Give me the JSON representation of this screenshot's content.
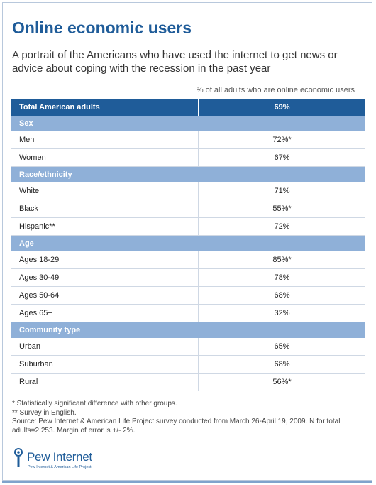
{
  "title": "Online economic users",
  "subtitle": "A portrait of the Americans who have used the internet to get news or advice about coping with the recession in the past year",
  "chart_data": {
    "type": "table",
    "column_header": "% of all adults who are online economic users",
    "total": {
      "label": "Total American adults",
      "value": "69%"
    },
    "groups": [
      {
        "name": "Sex",
        "rows": [
          {
            "label": "Men",
            "value": "72%*"
          },
          {
            "label": "Women",
            "value": "67%"
          }
        ]
      },
      {
        "name": "Race/ethnicity",
        "rows": [
          {
            "label": "White",
            "value": "71%"
          },
          {
            "label": "Black",
            "value": "55%*"
          },
          {
            "label": "Hispanic**",
            "value": "72%"
          }
        ]
      },
      {
        "name": "Age",
        "rows": [
          {
            "label": "Ages 18-29",
            "value": "85%*"
          },
          {
            "label": "Ages 30-49",
            "value": "78%"
          },
          {
            "label": "Ages 50-64",
            "value": "68%"
          },
          {
            "label": "Ages 65+",
            "value": "32%"
          }
        ]
      },
      {
        "name": "Community type",
        "rows": [
          {
            "label": "Urban",
            "value": "65%"
          },
          {
            "label": "Suburban",
            "value": "68%"
          },
          {
            "label": "Rural",
            "value": "56%*"
          }
        ]
      }
    ]
  },
  "notes": {
    "significance": "* Statistically significant difference with other groups.",
    "language": "** Survey in English.",
    "source": "Source: Pew Internet & American Life Project survey conducted from March 26-April 19, 2009. N for total adults=2,253. Margin of error is +/- 2%."
  },
  "logo": {
    "name": "Pew Internet",
    "tagline": "Pew Internet & American Life Project",
    "color": "#1f5c99"
  }
}
